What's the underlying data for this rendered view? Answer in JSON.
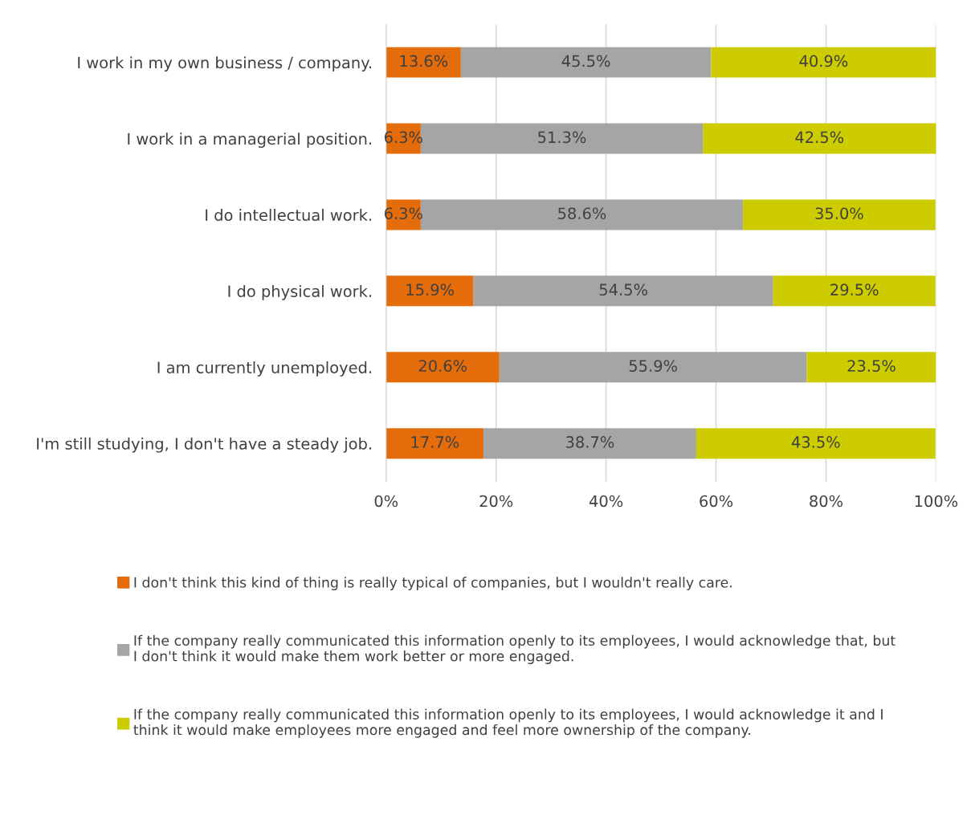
{
  "chart_data": {
    "type": "bar",
    "orientation": "horizontal",
    "stacked": true,
    "categories": [
      "I work in my own business / company.",
      "I work in a managerial position.",
      "I do intellectual work.",
      "I do physical work.",
      "I am currently unemployed.",
      "I'm still studying, I don't have a steady job."
    ],
    "series": [
      {
        "name": "I don't think this kind of thing is really typical of companies, but I wouldn't really care.",
        "color": "#e46c0a",
        "values": [
          13.6,
          6.3,
          6.3,
          15.9,
          20.6,
          17.7
        ],
        "value_labels": [
          "13.6%",
          "6.3%",
          "6.3%",
          "15.9%",
          "20.6%",
          "17.7%"
        ]
      },
      {
        "name": "If the company really communicated this information openly to its employees, I would acknowledge that, but\nI don't think it would make them work better or more engaged.",
        "color": "#a5a5a5",
        "values": [
          45.5,
          51.3,
          58.6,
          54.5,
          55.9,
          38.7
        ],
        "value_labels": [
          "45.5%",
          "51.3%",
          "58.6%",
          "54.5%",
          "55.9%",
          "38.7%"
        ]
      },
      {
        "name": "If the company really communicated this information openly to its employees, I would acknowledge it and I\nthink it would make employees more engaged and feel more ownership of the company.",
        "color": "#cccc00",
        "values": [
          40.9,
          42.5,
          35.0,
          29.5,
          23.5,
          43.5
        ],
        "value_labels": [
          "40.9%",
          "42.5%",
          "35.0%",
          "29.5%",
          "23.5%",
          "43.5%"
        ]
      }
    ],
    "xlim": [
      0,
      100
    ],
    "xticks": [
      {
        "value": 0,
        "label": "0%"
      },
      {
        "value": 20,
        "label": "20%"
      },
      {
        "value": 40,
        "label": "40%"
      },
      {
        "value": 60,
        "label": "60%"
      },
      {
        "value": 80,
        "label": "80%"
      },
      {
        "value": 100,
        "label": "100%"
      }
    ],
    "grid": "x",
    "legend": "bottom"
  }
}
